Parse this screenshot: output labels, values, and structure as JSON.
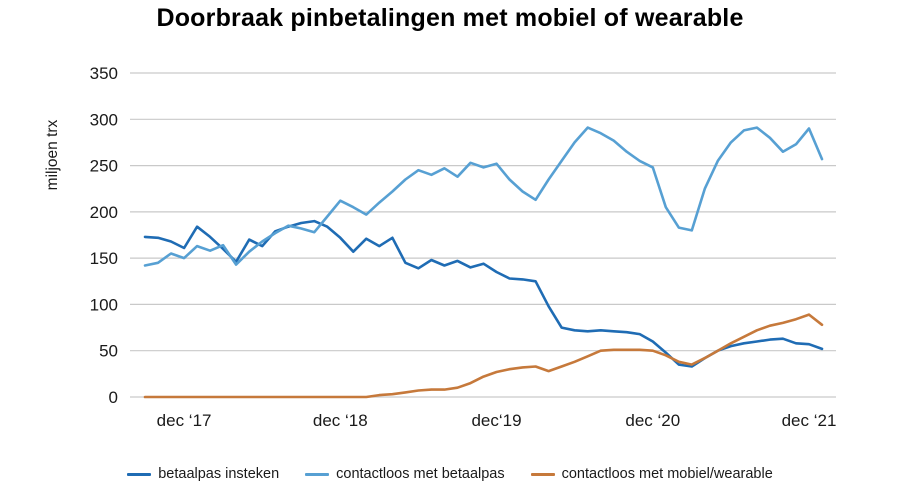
{
  "title": "Doorbraak pinbetalingen met mobiel of wearable",
  "chart_data": {
    "type": "line",
    "title": "Doorbraak pinbetalingen met mobiel of wearable",
    "xlabel": "",
    "ylabel": "miljoen trx",
    "ylim": [
      0,
      350
    ],
    "yticks": [
      0,
      50,
      100,
      150,
      200,
      250,
      300,
      350
    ],
    "grid": "horizontal",
    "grid_color": "#c9c9c9",
    "text_color": "#1a1a1a",
    "legend_position": "bottom",
    "x_interval": "monthly",
    "x_start_month": "2017-09",
    "x_tick_labels": [
      {
        "index": 3,
        "label": "dec ‘17"
      },
      {
        "index": 15,
        "label": "dec ‘18"
      },
      {
        "index": 27,
        "label": "dec‘19"
      },
      {
        "index": 39,
        "label": "dec ‘20"
      },
      {
        "index": 51,
        "label": "dec ‘21"
      }
    ],
    "series": [
      {
        "id": "betaalpas-insteken",
        "name": "betaalpas insteken",
        "color": "#1f6cb4",
        "values": [
          173,
          172,
          168,
          161,
          184,
          173,
          160,
          146,
          170,
          163,
          179,
          184,
          188,
          190,
          184,
          172,
          157,
          171,
          163,
          172,
          145,
          139,
          148,
          142,
          147,
          140,
          144,
          135,
          128,
          127,
          125,
          98,
          75,
          72,
          71,
          72,
          71,
          70,
          68,
          60,
          48,
          35,
          33,
          42,
          50,
          55,
          58,
          60,
          62,
          63,
          58,
          57,
          52
        ]
      },
      {
        "id": "contactloos-met-betaalpas",
        "name": "contactloos met betaalpas",
        "color": "#57a0d3",
        "values": [
          142,
          145,
          155,
          150,
          163,
          158,
          164,
          143,
          157,
          168,
          177,
          185,
          182,
          178,
          195,
          212,
          205,
          197,
          210,
          222,
          235,
          245,
          240,
          247,
          238,
          253,
          248,
          252,
          235,
          222,
          213,
          235,
          255,
          275,
          291,
          285,
          277,
          265,
          255,
          248,
          205,
          183,
          180,
          225,
          255,
          275,
          288,
          291,
          280,
          265,
          273,
          290,
          257
        ]
      },
      {
        "id": "contactloos-met-mobiel-wearable",
        "name": "contactloos met mobiel/wearable",
        "color": "#c6793b",
        "values": [
          0,
          0,
          0,
          0,
          0,
          0,
          0,
          0,
          0,
          0,
          0,
          0,
          0,
          0,
          0,
          0,
          0,
          0,
          2,
          3,
          5,
          7,
          8,
          8,
          10,
          15,
          22,
          27,
          30,
          32,
          33,
          28,
          33,
          38,
          44,
          50,
          51,
          51,
          51,
          50,
          45,
          38,
          35,
          42,
          50,
          58,
          65,
          72,
          77,
          80,
          84,
          89,
          78
        ]
      }
    ]
  }
}
